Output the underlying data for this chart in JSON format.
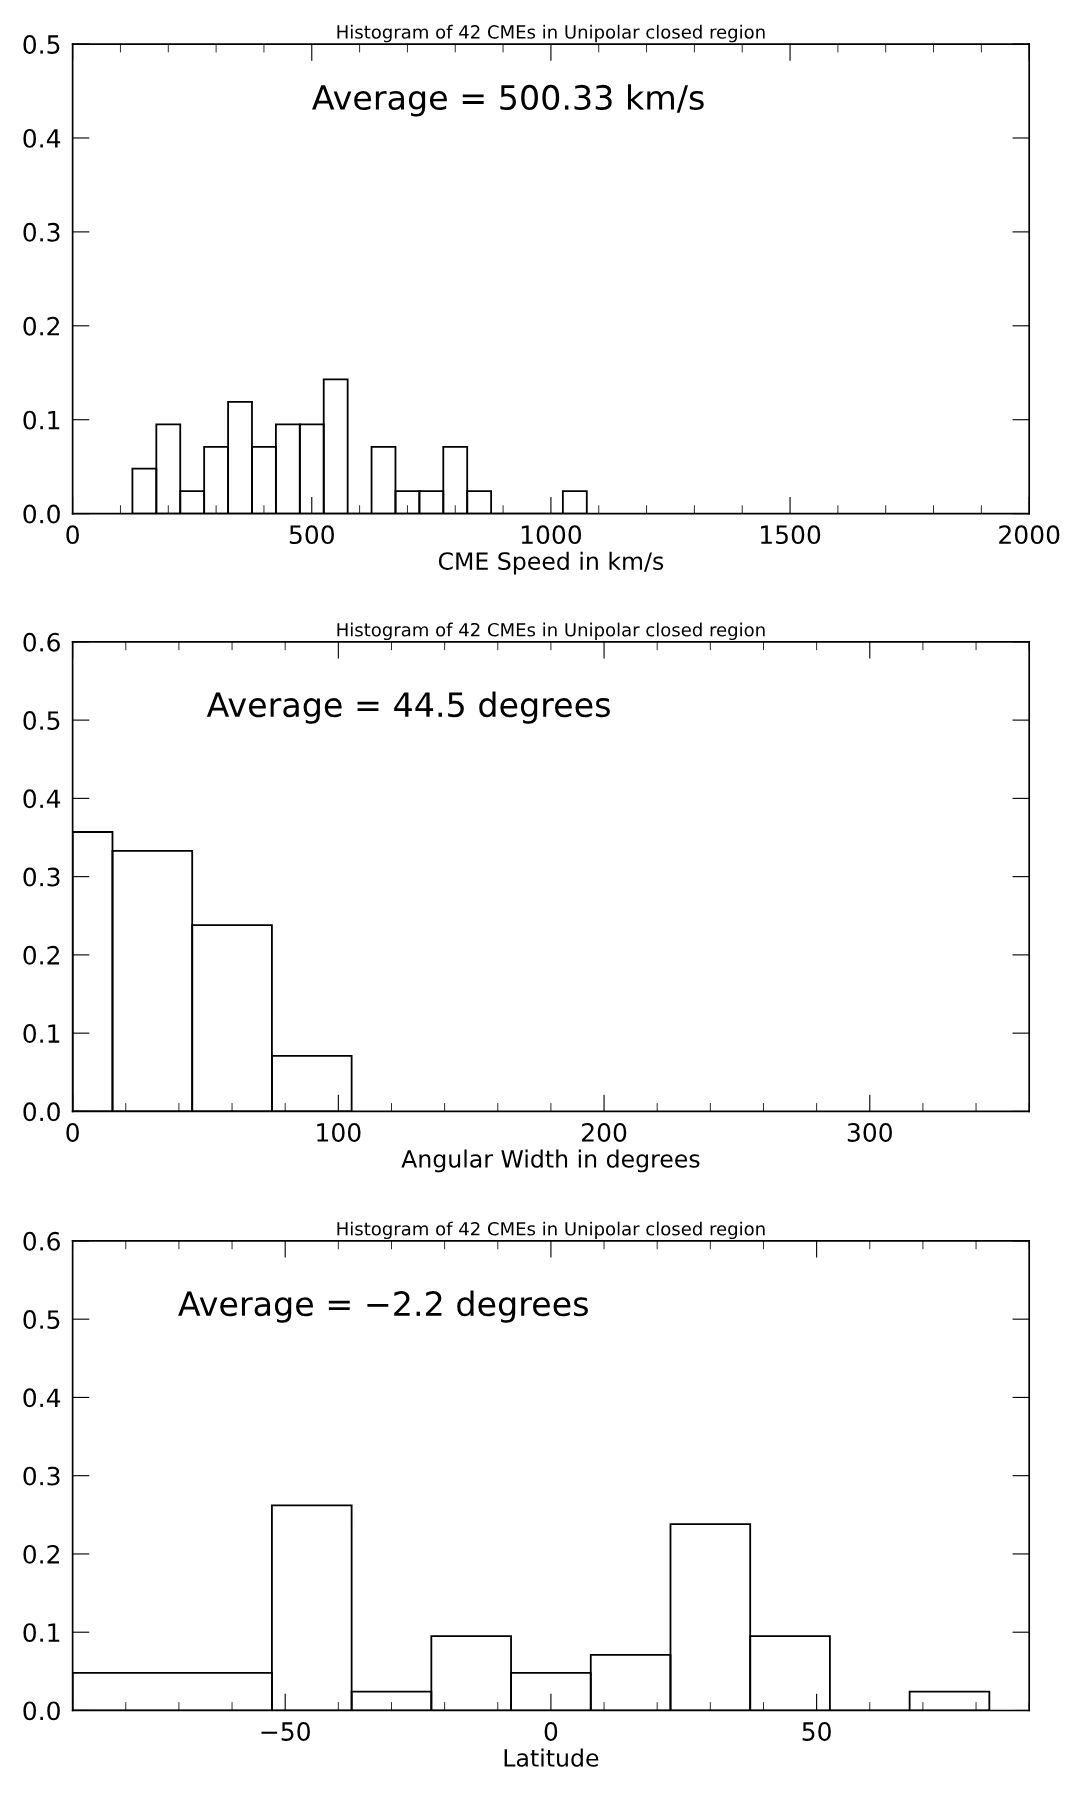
{
  "chart_data": [
    {
      "type": "histogram",
      "title": "Histogram of 42 CMEs in Unipolar closed region",
      "xlabel": "CME Speed in km/s",
      "annotations": [
        "Average = 500.33 km/s"
      ],
      "bins": [
        125,
        175,
        225,
        275,
        325,
        375,
        425,
        475,
        525,
        575,
        625,
        675,
        725,
        775,
        825,
        875,
        925,
        975,
        1025,
        1075
      ],
      "values": [
        0.048,
        0.095,
        0.024,
        0.071,
        0.119,
        0.071,
        0.095,
        0.095,
        0.143,
        0,
        0.071,
        0.024,
        0.024,
        0.071,
        0.024,
        0,
        0,
        0,
        0.024
      ],
      "color": "#000000",
      "xlim": [
        0,
        2000
      ],
      "xticks": [
        0,
        500,
        1000,
        1500,
        2000
      ],
      "ylim": [
        0,
        0.5
      ],
      "yticks": [
        {
          "value": 0,
          "label": "0.0"
        },
        {
          "value": 0.1,
          "label": "0.1"
        },
        {
          "value": 0.2,
          "label": "0.2"
        },
        {
          "value": 0.3,
          "label": "0.3"
        },
        {
          "value": 0.4,
          "label": "0.4"
        },
        {
          "value": 0.5,
          "label": "0.5"
        }
      ],
      "grid": false,
      "legend": false
    },
    {
      "type": "histogram",
      "title": "Histogram of 42 CMEs in Unipolar closed region",
      "xlabel": "Angular Width in degrees",
      "annotations": [
        "Average = 44.5 degrees"
      ],
      "bins": [
        0,
        15,
        45,
        75,
        105
      ],
      "values": [
        0.357,
        0.333,
        0.238,
        0.071
      ],
      "color": "#000000",
      "xlim": [
        0,
        360
      ],
      "xticks": [
        0,
        100,
        200,
        300
      ],
      "ylim": [
        0,
        0.6
      ],
      "yticks": [
        {
          "value": 0,
          "label": "0.0"
        },
        {
          "value": 0.1,
          "label": "0.1"
        },
        {
          "value": 0.2,
          "label": "0.2"
        },
        {
          "value": 0.3,
          "label": "0.3"
        },
        {
          "value": 0.4,
          "label": "0.4"
        },
        {
          "value": 0.5,
          "label": "0.5"
        },
        {
          "value": 0.6,
          "label": "0.6"
        }
      ],
      "grid": false,
      "legend": false
    },
    {
      "type": "histogram",
      "title": "Histogram of 42 CMEs in Unipolar closed region",
      "xlabel": "Latitude",
      "annotations": [
        "Average = −2.2 degrees"
      ],
      "bins": [
        -90,
        -52.5,
        -37.5,
        -22.5,
        -7.5,
        7.5,
        22.5,
        37.5,
        52.5,
        67.5,
        82.5
      ],
      "values": [
        0.048,
        0.262,
        0.024,
        0.095,
        0.048,
        0.071,
        0.238,
        0.095,
        0,
        0.024
      ],
      "color": "#000000",
      "xlim": [
        -90,
        90
      ],
      "xticks": [
        {
          "value": -50,
          "label": "−50"
        },
        0,
        50
      ],
      "ylim": [
        0,
        0.6
      ],
      "yticks": [
        {
          "value": 0,
          "label": "0.0"
        },
        {
          "value": 0.1,
          "label": "0.1"
        },
        {
          "value": 0.2,
          "label": "0.2"
        },
        {
          "value": 0.3,
          "label": "0.3"
        },
        {
          "value": 0.4,
          "label": "0.4"
        },
        {
          "value": 0.5,
          "label": "0.5"
        },
        {
          "value": 0.6,
          "label": "0.6"
        }
      ],
      "grid": false,
      "legend": false
    }
  ]
}
